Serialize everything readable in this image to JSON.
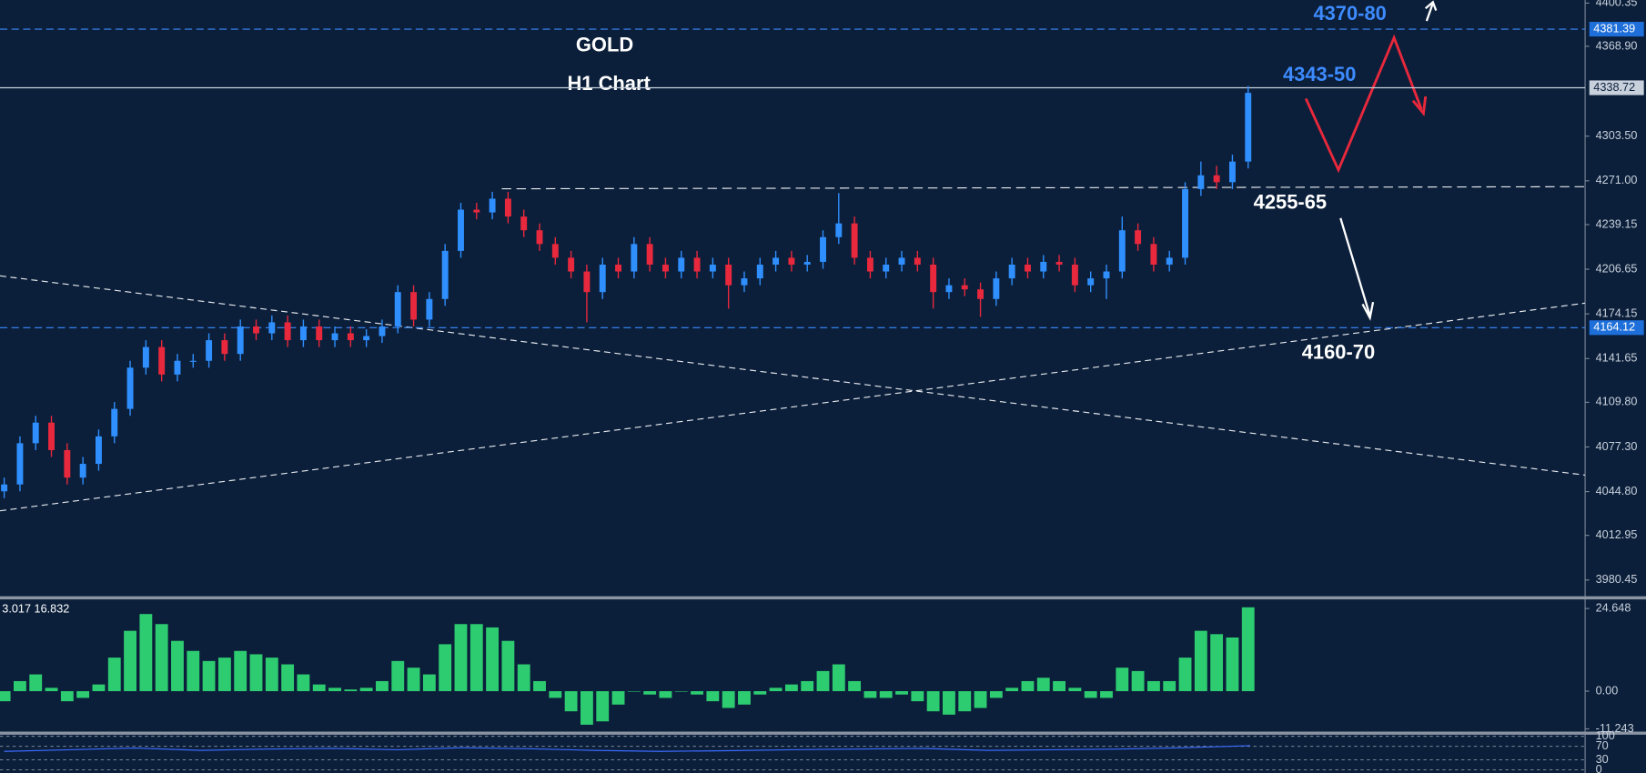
{
  "chart_data": {
    "type": "candlestick",
    "title": "GOLD",
    "subtitle": "H1 Chart",
    "up_color": "#2f8fff",
    "down_color": "#e8283c",
    "open": [
      4045,
      4050,
      4080,
      4095,
      4075,
      4055,
      4065,
      4085,
      4105,
      4135,
      4150,
      4130,
      4140,
      4140,
      4155,
      4145,
      4165,
      4160,
      4168,
      4155,
      4165,
      4155,
      4160,
      4155,
      4158,
      4165,
      4190,
      4170,
      4185,
      4220,
      4250,
      4248,
      4258,
      4245,
      4235,
      4225,
      4215,
      4205,
      4190,
      4210,
      4205,
      4225,
      4210,
      4205,
      4215,
      4205,
      4210,
      4195,
      4200,
      4210,
      4215,
      4210,
      4212,
      4230,
      4240,
      4215,
      4205,
      4210,
      4215,
      4210,
      4190,
      4195,
      4192,
      4185,
      4200,
      4210,
      4205,
      4212,
      4210,
      4195,
      4200,
      4205,
      4235,
      4225,
      4210,
      4215,
      4265,
      4275,
      4270,
      4285
    ],
    "high": [
      4055,
      4085,
      4100,
      4100,
      4080,
      4070,
      4090,
      4110,
      4140,
      4155,
      4155,
      4145,
      4145,
      4160,
      4160,
      4170,
      4170,
      4173,
      4173,
      4170,
      4170,
      4165,
      4165,
      4163,
      4170,
      4195,
      4195,
      4190,
      4225,
      4255,
      4255,
      4263,
      4263,
      4250,
      4240,
      4230,
      4220,
      4210,
      4215,
      4215,
      4230,
      4230,
      4215,
      4220,
      4220,
      4215,
      4215,
      4205,
      4215,
      4220,
      4220,
      4217,
      4235,
      4262,
      4245,
      4220,
      4215,
      4220,
      4220,
      4215,
      4200,
      4200,
      4197,
      4205,
      4215,
      4215,
      4217,
      4217,
      4215,
      4205,
      4210,
      4245,
      4240,
      4230,
      4220,
      4270,
      4285,
      4282,
      4290,
      4340
    ],
    "low": [
      4040,
      4045,
      4075,
      4070,
      4050,
      4050,
      4060,
      4080,
      4100,
      4130,
      4125,
      4125,
      4135,
      4135,
      4140,
      4140,
      4155,
      4155,
      4150,
      4150,
      4150,
      4150,
      4150,
      4150,
      4153,
      4160,
      4165,
      4165,
      4180,
      4215,
      4243,
      4243,
      4240,
      4230,
      4220,
      4210,
      4200,
      4168,
      4185,
      4200,
      4200,
      4205,
      4200,
      4200,
      4200,
      4200,
      4178,
      4190,
      4195,
      4205,
      4205,
      4205,
      4207,
      4225,
      4210,
      4200,
      4200,
      4205,
      4205,
      4178,
      4185,
      4187,
      4172,
      4180,
      4195,
      4200,
      4200,
      4205,
      4190,
      4190,
      4185,
      4200,
      4220,
      4205,
      4205,
      4210,
      4260,
      4265,
      4265,
      4280
    ],
    "close": [
      4050,
      4080,
      4095,
      4075,
      4055,
      4065,
      4085,
      4105,
      4135,
      4150,
      4130,
      4140,
      4140,
      4155,
      4145,
      4165,
      4160,
      4168,
      4155,
      4165,
      4155,
      4160,
      4155,
      4158,
      4165,
      4190,
      4170,
      4185,
      4220,
      4250,
      4248,
      4258,
      4245,
      4235,
      4225,
      4215,
      4205,
      4190,
      4210,
      4205,
      4225,
      4210,
      4205,
      4215,
      4205,
      4210,
      4195,
      4200,
      4210,
      4215,
      4210,
      4212,
      4230,
      4240,
      4215,
      4205,
      4210,
      4215,
      4210,
      4190,
      4195,
      4192,
      4185,
      4200,
      4210,
      4205,
      4212,
      4210,
      4195,
      4200,
      4205,
      4235,
      4225,
      4210,
      4215,
      4265,
      4275,
      4270,
      4285,
      4335
    ],
    "ylim": [
      3969,
      4402.6
    ],
    "yticks": [
      4400.35,
      {
        "value": 4368.9,
        "label": "4368.90"
      },
      {
        "value": 4303.5,
        "label": "4303.50"
      },
      {
        "value": 4271,
        "label": "4271.00"
      },
      4239.15,
      4206.65,
      4174.15,
      4141.65,
      {
        "value": 4109.8,
        "label": "4109.80"
      },
      {
        "value": 4077.3,
        "label": "4077.30"
      },
      {
        "value": 4044.8,
        "label": "4044.80"
      },
      4012.95,
      3980.45
    ],
    "levels": [
      {
        "value": 4381.39,
        "color": "#3d8bff"
      },
      {
        "value": 4338.72,
        "color": "#c8d0dc"
      },
      {
        "value": 4164.12,
        "color": "#3d8bff"
      }
    ],
    "annotations": [
      "4370-80",
      "4343-50",
      "4255-65",
      "4160-70"
    ],
    "macd": {
      "label": "3.017 16.832",
      "color": "#2ecc71",
      "values": [
        -3,
        3,
        5,
        1,
        -3,
        -2,
        2,
        10,
        18,
        23,
        20,
        15,
        12,
        9,
        10,
        12,
        11,
        10,
        8,
        5,
        2,
        1,
        0.5,
        1,
        3,
        9,
        7,
        5,
        14,
        20,
        20,
        19,
        15,
        8,
        3,
        -2,
        -6,
        -10,
        -9,
        -4,
        0,
        -1,
        -2,
        0,
        -1,
        -3,
        -5,
        -4,
        -1,
        1,
        2,
        3,
        6,
        8,
        3,
        -2,
        -2,
        -1,
        -3,
        -6,
        -7,
        -6,
        -5,
        -2,
        1,
        3,
        4,
        3,
        1,
        -2,
        -2,
        7,
        6,
        3,
        3,
        10,
        18,
        17,
        16,
        25
      ],
      "ylim": [
        -12.2,
        27.2
      ],
      "yticks": [
        24.648,
        {
          "value": 0,
          "label": "0.00"
        },
        -11.243
      ]
    },
    "rsi": {
      "color": "#3d6bff",
      "values": [
        55,
        60,
        65,
        58,
        62,
        64,
        60,
        66,
        63,
        58,
        55,
        57,
        60,
        62,
        64,
        58,
        60,
        62,
        66,
        72
      ],
      "ylim": [
        0,
        100
      ],
      "yticks": [
        100,
        70,
        30,
        0
      ]
    }
  }
}
